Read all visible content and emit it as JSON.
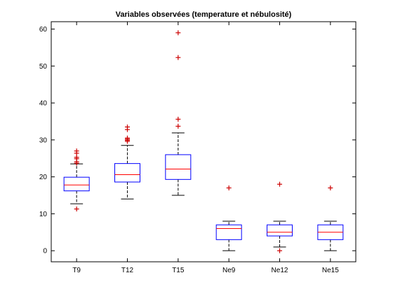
{
  "chart_data": {
    "type": "box",
    "title": "Variables observées (temperature et nébulosité)",
    "xlabel": "",
    "ylabel": "",
    "categories": [
      "T9",
      "T12",
      "T15",
      "Ne9",
      "Ne12",
      "Ne15"
    ],
    "ylim": [
      -3,
      62
    ],
    "yticks": [
      0,
      10,
      20,
      30,
      40,
      50,
      60
    ],
    "grid": false,
    "colors": {
      "box": "#0000ff",
      "median": "#ff0000",
      "whisker": "#000000",
      "outlier": "#cc0000"
    },
    "boxes": [
      {
        "name": "T9",
        "lower_whisker": 12.7,
        "q1": 16.2,
        "median": 17.8,
        "q3": 19.9,
        "upper_whisker": 23.5,
        "outliers": [
          11.3,
          23.7,
          24.1,
          24.9,
          25.3,
          26.4,
          27.0
        ]
      },
      {
        "name": "T12",
        "lower_whisker": 14.0,
        "q1": 18.6,
        "median": 20.6,
        "q3": 23.6,
        "upper_whisker": 28.5,
        "outliers": [
          29.6,
          29.9,
          30.2,
          30.5,
          32.8,
          33.5
        ]
      },
      {
        "name": "T15",
        "lower_whisker": 15.0,
        "q1": 19.3,
        "median": 22.1,
        "q3": 26.0,
        "upper_whisker": 31.9,
        "outliers": [
          33.7,
          35.6,
          52.3,
          59.0
        ]
      },
      {
        "name": "Ne9",
        "lower_whisker": 0,
        "q1": 3,
        "median": 6,
        "q3": 7,
        "upper_whisker": 8,
        "outliers": [
          17
        ]
      },
      {
        "name": "Ne12",
        "lower_whisker": 1,
        "q1": 4,
        "median": 5,
        "q3": 7,
        "upper_whisker": 8,
        "outliers": [
          0,
          18
        ]
      },
      {
        "name": "Ne15",
        "lower_whisker": 0,
        "q1": 3,
        "median": 5,
        "q3": 7,
        "upper_whisker": 8,
        "outliers": [
          17
        ]
      }
    ]
  }
}
